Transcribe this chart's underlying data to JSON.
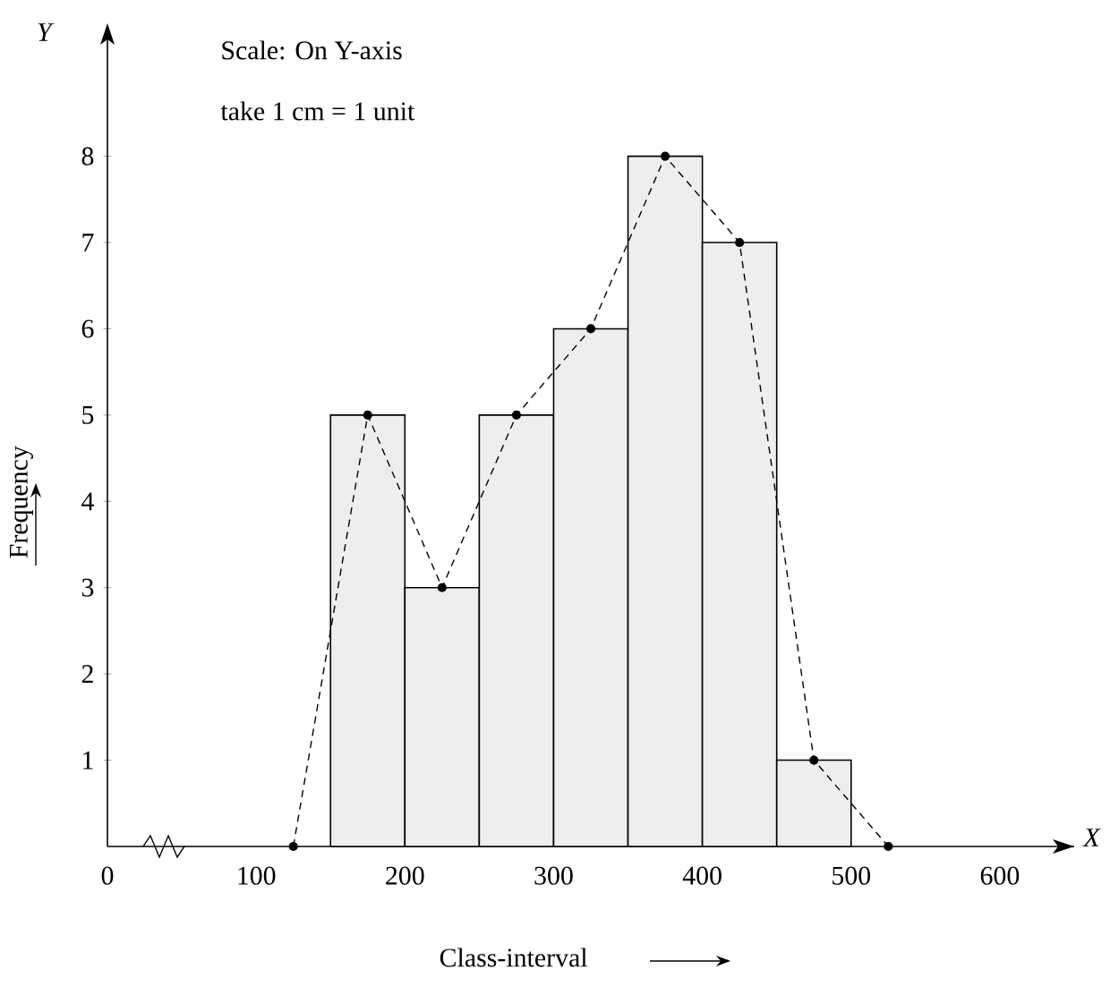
{
  "chart_data": {
    "type": "histogram",
    "xlabel": "Class-interval",
    "ylabel": "Frequency",
    "xlim": [
      0,
      650
    ],
    "ylim": [
      0,
      9.5
    ],
    "xticks": [
      0,
      100,
      200,
      300,
      400,
      500,
      600
    ],
    "yticks": [
      1,
      2,
      3,
      4,
      5,
      6,
      7,
      8
    ],
    "grid": false,
    "series": [
      {
        "color": "#eeeeee",
        "bins": [
          150,
          200,
          250,
          300,
          350,
          400,
          450,
          500
        ],
        "values": [
          5,
          3,
          5,
          6,
          8,
          7,
          1
        ]
      },
      {
        "type": "line",
        "color": "#000000",
        "line_style": "dashed",
        "marker": "circle",
        "x": [
          125,
          175,
          225,
          275,
          325,
          375,
          425,
          475,
          525
        ],
        "values": [
          0,
          5,
          3,
          5,
          6,
          8,
          7,
          1,
          0
        ]
      }
    ],
    "annotations": [
      "Scale: On Y-axis",
      "take 1 cm = 1 unit",
      "X",
      "Y"
    ]
  }
}
